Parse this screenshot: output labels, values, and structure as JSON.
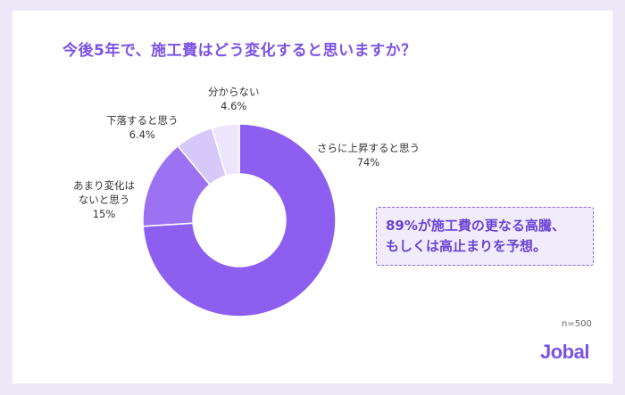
{
  "chart_data": {
    "type": "pie",
    "title": "今後5年で、施工費はどう変化すると思いますか？",
    "slices": [
      {
        "label_lines": [
          "さらに上昇すると思う"
        ],
        "pct_text": "74%",
        "value": 74,
        "color": "#8c5ff0"
      },
      {
        "label_lines": [
          "あまり変化は",
          "ないと思う"
        ],
        "pct_text": "15%",
        "value": 15,
        "color": "#9b72f2"
      },
      {
        "label_lines": [
          "下落すると思う"
        ],
        "pct_text": "6.4%",
        "value": 6.4,
        "color": "#d6c8f8"
      },
      {
        "label_lines": [
          "分からない"
        ],
        "pct_text": "4.6%",
        "value": 4.6,
        "color": "#ece5fc"
      }
    ]
  },
  "callout": {
    "line1": "89%が施工費の更なる高騰、",
    "line2": "もしくは高止まりを予想。"
  },
  "sample_size": "n=500",
  "logo": "Jobal"
}
